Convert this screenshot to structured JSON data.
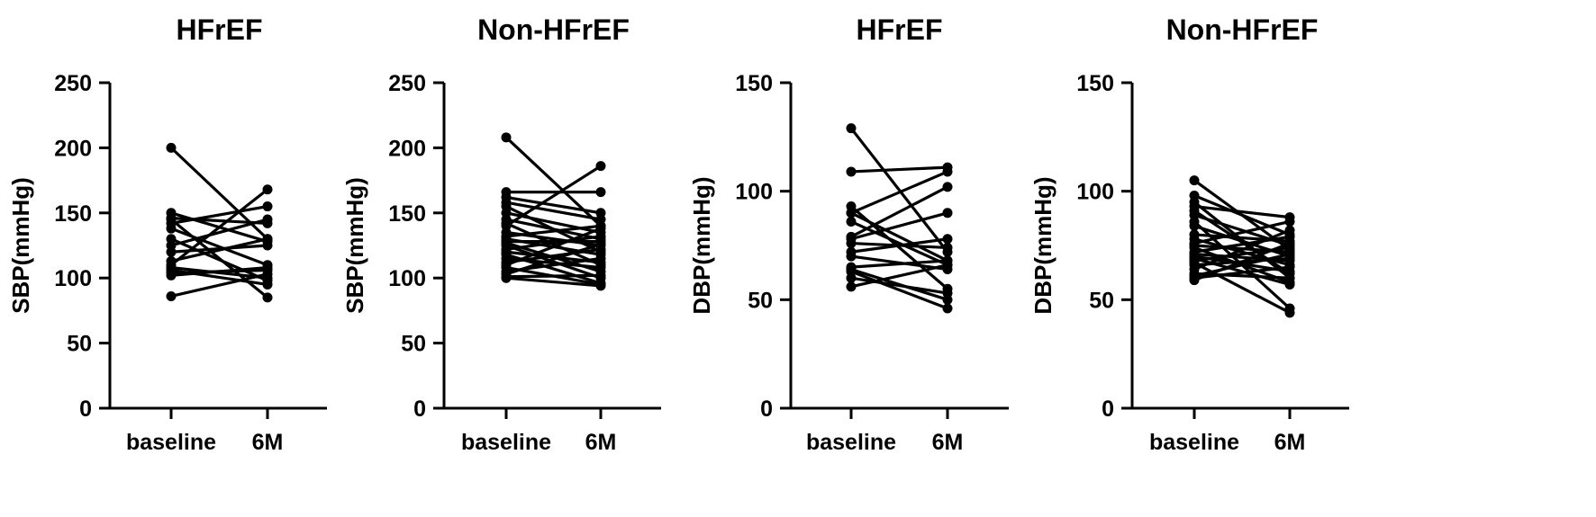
{
  "chart_data": [
    {
      "type": "line",
      "title": "HFrEF",
      "ylabel": "SBP(mmHg)",
      "xlabel": "",
      "categories": [
        "baseline",
        "6M"
      ],
      "ylim": [
        0,
        250
      ],
      "yticks": [
        0,
        50,
        100,
        150,
        200,
        250
      ],
      "grid": false,
      "pairs": [
        [
          200,
          130
        ],
        [
          150,
          128
        ],
        [
          146,
          142
        ],
        [
          142,
          155
        ],
        [
          138,
          110
        ],
        [
          125,
          145
        ],
        [
          113,
          130
        ],
        [
          110,
          168
        ],
        [
          108,
          100
        ],
        [
          106,
          95
        ],
        [
          104,
          106
        ],
        [
          102,
          108
        ],
        [
          86,
          103
        ],
        [
          145,
          85
        ],
        [
          130,
          98
        ],
        [
          120,
          125
        ]
      ]
    },
    {
      "type": "line",
      "title": "Non-HFrEF",
      "ylabel": "SBP(mmHg)",
      "xlabel": "",
      "categories": [
        "baseline",
        "6M"
      ],
      "ylim": [
        0,
        250
      ],
      "yticks": [
        0,
        50,
        100,
        150,
        200,
        250
      ],
      "grid": false,
      "pairs": [
        [
          208,
          140
        ],
        [
          166,
          166
        ],
        [
          162,
          150
        ],
        [
          158,
          145
        ],
        [
          155,
          120
        ],
        [
          150,
          135
        ],
        [
          145,
          130
        ],
        [
          142,
          110
        ],
        [
          140,
          186
        ],
        [
          135,
          125
        ],
        [
          132,
          140
        ],
        [
          130,
          118
        ],
        [
          128,
          128
        ],
        [
          127,
          105
        ],
        [
          125,
          100
        ],
        [
          122,
          132
        ],
        [
          120,
          112
        ],
        [
          118,
          96
        ],
        [
          115,
          108
        ],
        [
          112,
          122
        ],
        [
          110,
          138
        ],
        [
          108,
          95
        ],
        [
          105,
          115
        ],
        [
          103,
          126
        ],
        [
          100,
          94
        ],
        [
          101,
          102
        ]
      ]
    },
    {
      "type": "line",
      "title": "HFrEF",
      "ylabel": "DBP(mmHg)",
      "xlabel": "",
      "categories": [
        "baseline",
        "6M"
      ],
      "ylim": [
        0,
        150
      ],
      "yticks": [
        0,
        50,
        100,
        150
      ],
      "grid": false,
      "pairs": [
        [
          129,
          72
        ],
        [
          109,
          111
        ],
        [
          93,
          55
        ],
        [
          90,
          109
        ],
        [
          90,
          68
        ],
        [
          86,
          66
        ],
        [
          79,
          102
        ],
        [
          78,
          90
        ],
        [
          76,
          74
        ],
        [
          72,
          78
        ],
        [
          70,
          64
        ],
        [
          65,
          68
        ],
        [
          64,
          50
        ],
        [
          63,
          46
        ],
        [
          60,
          53
        ],
        [
          56,
          66
        ]
      ]
    },
    {
      "type": "line",
      "title": "Non-HFrEF",
      "ylabel": "DBP(mmHg)",
      "xlabel": "",
      "categories": [
        "baseline",
        "6M"
      ],
      "ylim": [
        0,
        150
      ],
      "yticks": [
        0,
        50,
        100,
        150
      ],
      "grid": false,
      "pairs": [
        [
          105,
          73
        ],
        [
          98,
          80
        ],
        [
          95,
          60
        ],
        [
          93,
          88
        ],
        [
          91,
          62
        ],
        [
          89,
          75
        ],
        [
          86,
          46
        ],
        [
          84,
          70
        ],
        [
          80,
          77
        ],
        [
          78,
          66
        ],
        [
          76,
          86
        ],
        [
          75,
          72
        ],
        [
          74,
          58
        ],
        [
          72,
          79
        ],
        [
          71,
          68
        ],
        [
          70,
          63
        ],
        [
          69,
          57
        ],
        [
          68,
          74
        ],
        [
          67,
          44
        ],
        [
          66,
          69
        ],
        [
          64,
          82
        ],
        [
          62,
          60
        ],
        [
          61,
          71
        ],
        [
          60,
          65
        ],
        [
          59,
          76
        ]
      ]
    }
  ]
}
